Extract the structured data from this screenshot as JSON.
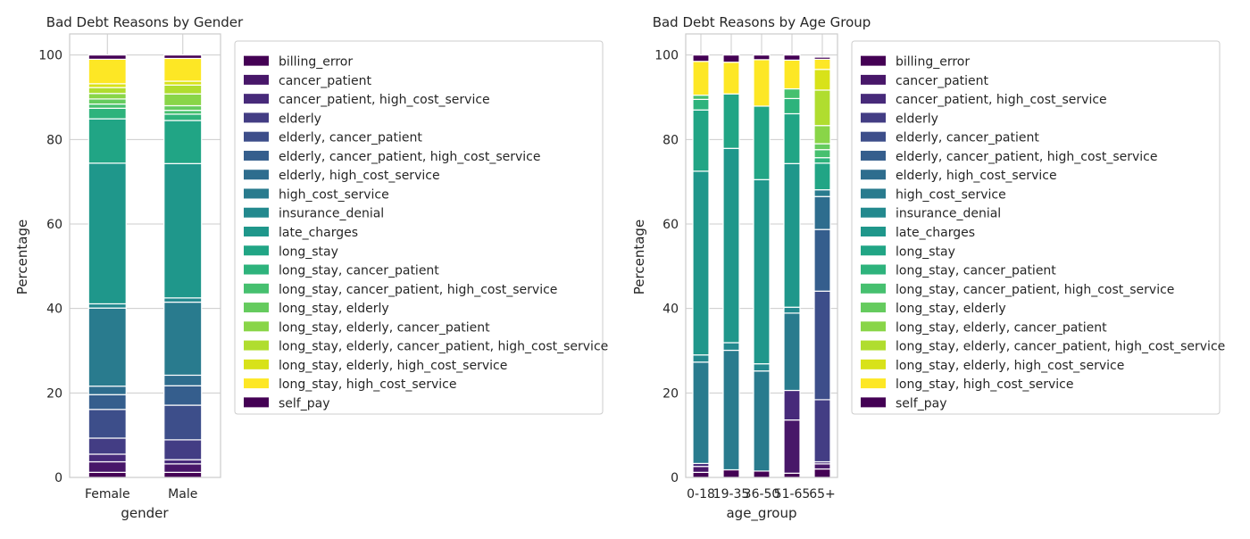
{
  "colors": [
    "#440154",
    "#481769",
    "#472a7a",
    "#433d84",
    "#3d4e8a",
    "#355e8d",
    "#2e6d8e",
    "#297b8e",
    "#23898e",
    "#1f978b",
    "#21a585",
    "#2eb37c",
    "#46c06f",
    "#65cb5e",
    "#89d548",
    "#b0dd2f",
    "#d8e219",
    "#fde725"
  ],
  "chart_data": [
    {
      "type": "bar",
      "stacked": true,
      "title": "Bad Debt Reasons by Gender",
      "xlabel": "gender",
      "ylabel": "Percentage",
      "ylim": [
        0,
        105
      ],
      "yticks": [
        0,
        20,
        40,
        60,
        80,
        100
      ],
      "grid": true,
      "legend_position": "right",
      "categories": [
        "Female",
        "Male"
      ],
      "series": [
        {
          "name": "billing_error",
          "values": [
            1.2,
            1.2
          ]
        },
        {
          "name": "cancer_patient",
          "values": [
            2.5,
            2.0
          ]
        },
        {
          "name": "cancer_patient, high_cost_service",
          "values": [
            1.8,
            1.0
          ]
        },
        {
          "name": "elderly",
          "values": [
            3.8,
            4.7
          ]
        },
        {
          "name": "elderly, cancer_patient",
          "values": [
            6.8,
            8.2
          ]
        },
        {
          "name": "elderly, cancer_patient, high_cost_service",
          "values": [
            3.5,
            4.6
          ]
        },
        {
          "name": "elderly, high_cost_service",
          "values": [
            2.0,
            2.5
          ]
        },
        {
          "name": "high_cost_service",
          "values": [
            18.5,
            17.3
          ]
        },
        {
          "name": "insurance_denial",
          "values": [
            1.0,
            1.0
          ]
        },
        {
          "name": "late_charges",
          "values": [
            33.3,
            31.8
          ]
        },
        {
          "name": "long_stay",
          "values": [
            10.5,
            10.2
          ]
        },
        {
          "name": "long_stay, cancer_patient",
          "values": [
            2.5,
            1.5
          ]
        },
        {
          "name": "long_stay, cancer_patient, high_cost_service",
          "values": [
            1.0,
            0.9
          ]
        },
        {
          "name": "long_stay, elderly",
          "values": [
            1.2,
            1.1
          ]
        },
        {
          "name": "long_stay, elderly, cancer_patient",
          "values": [
            1.3,
            2.8
          ]
        },
        {
          "name": "long_stay, elderly, cancer_patient, high_cost_service",
          "values": [
            1.4,
            2.1
          ]
        },
        {
          "name": "long_stay, elderly, high_cost_service",
          "values": [
            0.9,
            0.9
          ]
        },
        {
          "name": "long_stay, high_cost_service",
          "values": [
            5.8,
            5.4
          ]
        },
        {
          "name": "self_pay",
          "values": [
            1.0,
            0.8
          ]
        }
      ]
    },
    {
      "type": "bar",
      "stacked": true,
      "title": "Bad Debt Reasons by Age Group",
      "xlabel": "age_group",
      "ylabel": "Percentage",
      "ylim": [
        0,
        105
      ],
      "yticks": [
        0,
        20,
        40,
        60,
        80,
        100
      ],
      "grid": true,
      "legend_position": "right",
      "categories": [
        "0-18",
        "19-35",
        "36-50",
        "51-65",
        "65+"
      ],
      "series": [
        {
          "name": "billing_error",
          "values": [
            1.2,
            1.8,
            1.5,
            1.0,
            2.0
          ]
        },
        {
          "name": "cancer_patient",
          "values": [
            1.4,
            0,
            0,
            12.6,
            1.2
          ]
        },
        {
          "name": "cancer_patient, high_cost_service",
          "values": [
            0.7,
            0,
            0,
            7.0,
            0.5
          ]
        },
        {
          "name": "elderly",
          "values": [
            0,
            0,
            0,
            0,
            14.7
          ]
        },
        {
          "name": "elderly, cancer_patient",
          "values": [
            0,
            0,
            0,
            0,
            25.7
          ]
        },
        {
          "name": "elderly, cancer_patient, high_cost_service",
          "values": [
            0,
            0,
            0,
            0,
            14.6
          ]
        },
        {
          "name": "elderly, high_cost_service",
          "values": [
            0,
            0,
            0,
            0,
            7.8
          ]
        },
        {
          "name": "high_cost_service",
          "values": [
            24.0,
            28.3,
            23.7,
            18.3,
            1.6
          ]
        },
        {
          "name": "insurance_denial",
          "values": [
            1.7,
            1.8,
            1.7,
            1.4,
            0
          ]
        },
        {
          "name": "late_charges",
          "values": [
            43.5,
            46.0,
            43.6,
            34.0,
            0
          ]
        },
        {
          "name": "long_stay",
          "values": [
            14.5,
            12.9,
            17.4,
            11.8,
            6.3
          ]
        },
        {
          "name": "long_stay, cancer_patient",
          "values": [
            2.5,
            0,
            0,
            3.6,
            1.3
          ]
        },
        {
          "name": "long_stay, cancer_patient, high_cost_service",
          "values": [
            1.0,
            0,
            0,
            2.3,
            1.9
          ]
        },
        {
          "name": "long_stay, elderly",
          "values": [
            0,
            0,
            0,
            0,
            1.4
          ]
        },
        {
          "name": "long_stay, elderly, cancer_patient",
          "values": [
            0,
            0,
            0,
            0,
            4.3
          ]
        },
        {
          "name": "long_stay, elderly, cancer_patient, high_cost_service",
          "values": [
            0,
            0,
            0,
            0,
            8.4
          ]
        },
        {
          "name": "long_stay, elderly, high_cost_service",
          "values": [
            0,
            0,
            0,
            0,
            4.9
          ]
        },
        {
          "name": "long_stay, high_cost_service",
          "values": [
            8.0,
            7.5,
            11.0,
            6.8,
            2.4
          ]
        },
        {
          "name": "self_pay",
          "values": [
            1.5,
            1.7,
            1.1,
            1.2,
            0.5
          ]
        }
      ]
    }
  ]
}
